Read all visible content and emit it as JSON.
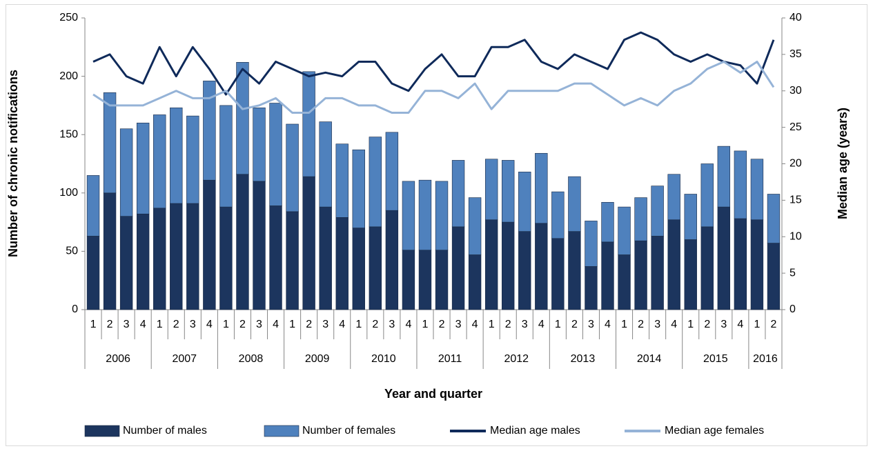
{
  "chart_data": {
    "type": "bar-line",
    "y_label": "Number of chronic notifications",
    "y2_label": "Median age (years)",
    "x_label": "Year and quarter",
    "categories": [
      "1",
      "2",
      "3",
      "4",
      "1",
      "2",
      "3",
      "4",
      "1",
      "2",
      "3",
      "4",
      "1",
      "2",
      "3",
      "4",
      "1",
      "2",
      "3",
      "4",
      "1",
      "2",
      "3",
      "4",
      "1",
      "2",
      "3",
      "4",
      "1",
      "2",
      "3",
      "4",
      "1",
      "2",
      "3",
      "4",
      "1",
      "2",
      "3",
      "4",
      "1",
      "2"
    ],
    "groups": [
      {
        "label": "2006",
        "size": 4
      },
      {
        "label": "2007",
        "size": 4
      },
      {
        "label": "2008",
        "size": 4
      },
      {
        "label": "2009",
        "size": 4
      },
      {
        "label": "2010",
        "size": 4
      },
      {
        "label": "2011",
        "size": 4
      },
      {
        "label": "2012",
        "size": 4
      },
      {
        "label": "2013",
        "size": 4
      },
      {
        "label": "2014",
        "size": 4
      },
      {
        "label": "2015",
        "size": 4
      },
      {
        "label": "2016",
        "size": 2
      }
    ],
    "series": [
      {
        "name": "Number of males",
        "kind": "bar",
        "color": "#1c355e",
        "values": [
          63,
          100,
          80,
          82,
          87,
          91,
          91,
          111,
          88,
          116,
          110,
          89,
          84,
          114,
          88,
          79,
          70,
          71,
          85,
          51,
          51,
          51,
          71,
          47,
          77,
          75,
          67,
          74,
          61,
          67,
          37,
          58,
          47,
          59,
          63,
          77,
          60,
          71,
          88,
          78,
          77,
          57
        ]
      },
      {
        "name": "Number of females",
        "kind": "bar",
        "color": "#4f81bd",
        "values": [
          52,
          86,
          75,
          78,
          80,
          82,
          75,
          85,
          87,
          96,
          63,
          88,
          75,
          90,
          73,
          63,
          67,
          77,
          67,
          59,
          60,
          59,
          57,
          49,
          52,
          53,
          51,
          60,
          40,
          47,
          39,
          34,
          41,
          37,
          43,
          39,
          39,
          54,
          52,
          58,
          52,
          42
        ]
      },
      {
        "name": "Median age males",
        "kind": "line",
        "axis": "y2",
        "color": "#0f2a5a",
        "values": [
          34,
          35,
          32,
          31,
          36,
          32,
          36,
          33,
          29.5,
          33,
          31,
          34,
          33,
          32,
          32.5,
          32,
          34,
          34,
          31,
          30,
          33,
          35,
          32,
          32,
          36,
          36,
          37,
          34,
          33,
          35,
          34,
          33,
          37,
          38,
          37,
          35,
          34,
          35,
          34,
          33.5,
          31,
          37
        ]
      },
      {
        "name": "Median age females",
        "kind": "line",
        "axis": "y2",
        "color": "#95b3d7",
        "values": [
          29.5,
          28,
          28,
          28,
          29,
          30,
          29,
          29,
          30,
          27.5,
          28,
          29,
          27,
          27,
          29,
          29,
          28,
          28,
          27,
          27,
          30,
          30,
          29,
          31,
          27.5,
          30,
          30,
          30,
          30,
          31,
          31,
          29.5,
          28,
          29,
          28,
          30,
          31,
          33,
          34,
          32.5,
          34,
          30.5
        ]
      }
    ],
    "ylim": [
      0,
      250
    ],
    "yticks": [
      0,
      50,
      100,
      150,
      200,
      250
    ],
    "y2lim": [
      0,
      40
    ],
    "y2ticks": [
      0,
      5,
      10,
      15,
      20,
      25,
      30,
      35,
      40
    ],
    "grid": false,
    "legend": "bottom"
  }
}
